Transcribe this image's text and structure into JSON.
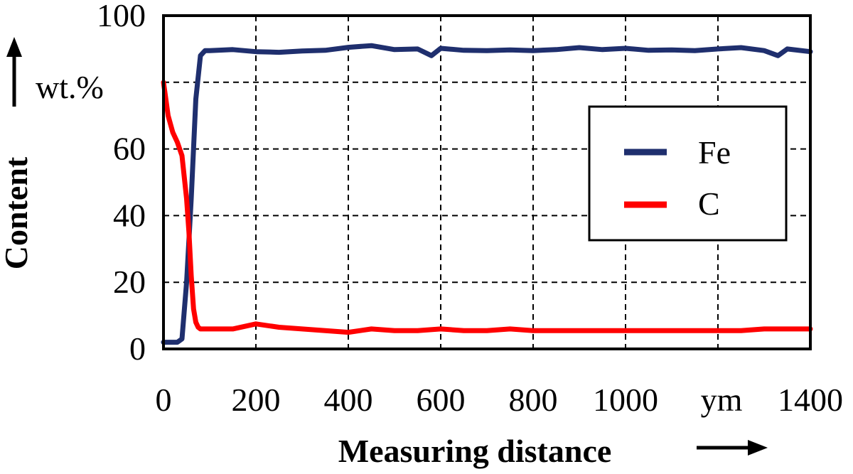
{
  "chart_data": {
    "type": "line",
    "title": "",
    "xlabel": "Measuring distance",
    "ylabel": "Content",
    "x_unit": "ym",
    "y_unit": "wt.%",
    "xlim": [
      0,
      1400
    ],
    "ylim": [
      0,
      100
    ],
    "x_ticks": [
      "0",
      "200",
      "400",
      "600",
      "800",
      "1000",
      "1400"
    ],
    "y_ticks": [
      "0",
      "20",
      "40",
      "60",
      "100"
    ],
    "grid": true,
    "legend_position": "right",
    "series": [
      {
        "name": "Fe",
        "color": "#1f2f6e",
        "x": [
          0,
          10,
          20,
          30,
          40,
          50,
          60,
          70,
          80,
          90,
          100,
          150,
          200,
          250,
          300,
          350,
          400,
          450,
          500,
          550,
          580,
          600,
          650,
          700,
          750,
          800,
          850,
          900,
          950,
          1000,
          1050,
          1100,
          1150,
          1200,
          1250,
          1300,
          1330,
          1350,
          1400
        ],
        "y": [
          2,
          2,
          2,
          2,
          3,
          20,
          45,
          75,
          88,
          89.5,
          89.5,
          89.8,
          89.2,
          89,
          89.4,
          89.6,
          90.5,
          91,
          89.8,
          90,
          88,
          90.2,
          89.6,
          89.5,
          89.7,
          89.5,
          89.8,
          90.4,
          89.8,
          90.2,
          89.6,
          89.7,
          89.5,
          90,
          90.4,
          89.5,
          88,
          90,
          89.2
        ]
      },
      {
        "name": "C",
        "color": "#ff0000",
        "x": [
          0,
          5,
          10,
          20,
          30,
          40,
          50,
          55,
          60,
          65,
          70,
          75,
          80,
          90,
          100,
          150,
          200,
          250,
          300,
          350,
          400,
          450,
          500,
          550,
          600,
          650,
          700,
          750,
          800,
          850,
          900,
          950,
          1000,
          1050,
          1100,
          1150,
          1200,
          1250,
          1300,
          1350,
          1400
        ],
        "y": [
          80,
          75,
          70,
          65,
          62,
          58,
          45,
          35,
          22,
          12,
          8,
          6.5,
          6,
          6,
          6,
          6,
          7.5,
          6.5,
          6,
          5.5,
          5,
          6,
          5.5,
          5.5,
          6,
          5.5,
          5.5,
          6,
          5.5,
          5.5,
          5.5,
          5.5,
          5.5,
          5.5,
          5.5,
          5.5,
          5.5,
          5.5,
          6,
          6,
          6
        ]
      }
    ]
  }
}
